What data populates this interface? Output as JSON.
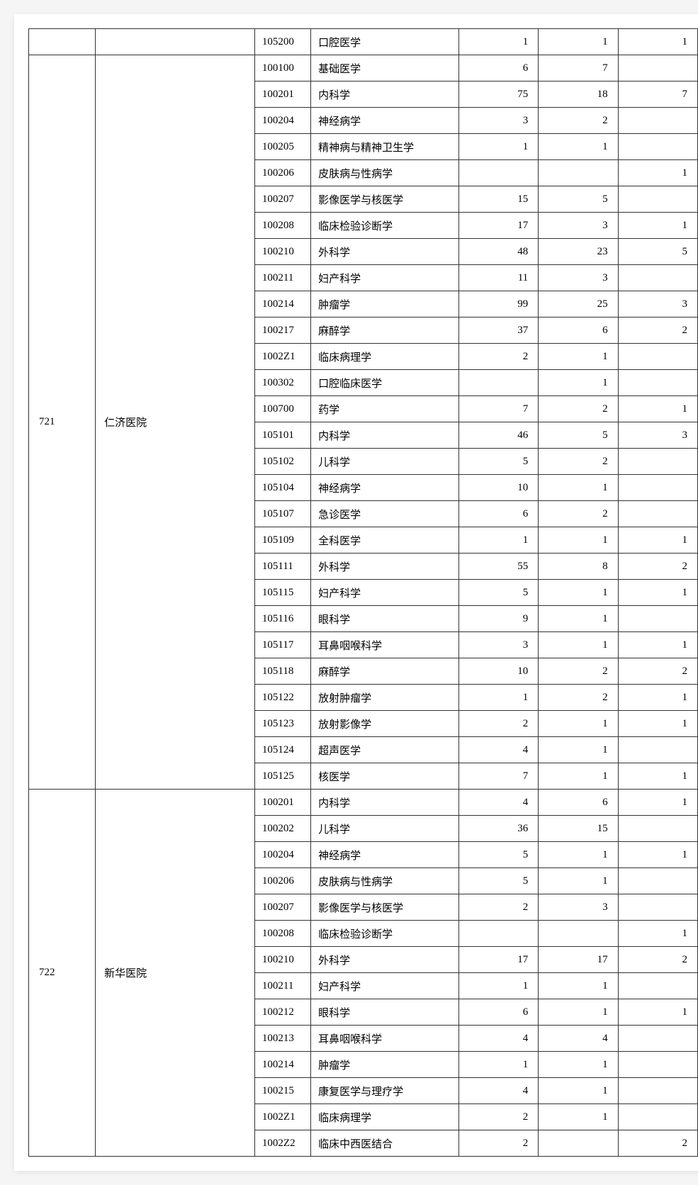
{
  "groups": [
    {
      "id": "",
      "name": "",
      "rows": [
        {
          "code": "105200",
          "subject": "口腔医学",
          "c1": "1",
          "c2": "1",
          "c3": "1"
        }
      ]
    },
    {
      "id": "721",
      "name": "仁济医院",
      "rows": [
        {
          "code": "100100",
          "subject": "基础医学",
          "c1": "6",
          "c2": "7",
          "c3": ""
        },
        {
          "code": "100201",
          "subject": "内科学",
          "c1": "75",
          "c2": "18",
          "c3": "7"
        },
        {
          "code": "100204",
          "subject": "神经病学",
          "c1": "3",
          "c2": "2",
          "c3": ""
        },
        {
          "code": "100205",
          "subject": "精神病与精神卫生学",
          "c1": "1",
          "c2": "1",
          "c3": ""
        },
        {
          "code": "100206",
          "subject": "皮肤病与性病学",
          "c1": "",
          "c2": "",
          "c3": "1"
        },
        {
          "code": "100207",
          "subject": "影像医学与核医学",
          "c1": "15",
          "c2": "5",
          "c3": ""
        },
        {
          "code": "100208",
          "subject": "临床检验诊断学",
          "c1": "17",
          "c2": "3",
          "c3": "1"
        },
        {
          "code": "100210",
          "subject": "外科学",
          "c1": "48",
          "c2": "23",
          "c3": "5"
        },
        {
          "code": "100211",
          "subject": "妇产科学",
          "c1": "11",
          "c2": "3",
          "c3": ""
        },
        {
          "code": "100214",
          "subject": "肿瘤学",
          "c1": "99",
          "c2": "25",
          "c3": "3"
        },
        {
          "code": "100217",
          "subject": "麻醉学",
          "c1": "37",
          "c2": "6",
          "c3": "2"
        },
        {
          "code": "1002Z1",
          "subject": "临床病理学",
          "c1": "2",
          "c2": "1",
          "c3": ""
        },
        {
          "code": "100302",
          "subject": "口腔临床医学",
          "c1": "",
          "c2": "1",
          "c3": ""
        },
        {
          "code": "100700",
          "subject": "药学",
          "c1": "7",
          "c2": "2",
          "c3": "1"
        },
        {
          "code": "105101",
          "subject": "内科学",
          "c1": "46",
          "c2": "5",
          "c3": "3"
        },
        {
          "code": "105102",
          "subject": "儿科学",
          "c1": "5",
          "c2": "2",
          "c3": ""
        },
        {
          "code": "105104",
          "subject": "神经病学",
          "c1": "10",
          "c2": "1",
          "c3": ""
        },
        {
          "code": "105107",
          "subject": "急诊医学",
          "c1": "6",
          "c2": "2",
          "c3": ""
        },
        {
          "code": "105109",
          "subject": "全科医学",
          "c1": "1",
          "c2": "1",
          "c3": "1"
        },
        {
          "code": "105111",
          "subject": "外科学",
          "c1": "55",
          "c2": "8",
          "c3": "2"
        },
        {
          "code": "105115",
          "subject": "妇产科学",
          "c1": "5",
          "c2": "1",
          "c3": "1"
        },
        {
          "code": "105116",
          "subject": "眼科学",
          "c1": "9",
          "c2": "1",
          "c3": ""
        },
        {
          "code": "105117",
          "subject": "耳鼻咽喉科学",
          "c1": "3",
          "c2": "1",
          "c3": "1"
        },
        {
          "code": "105118",
          "subject": "麻醉学",
          "c1": "10",
          "c2": "2",
          "c3": "2"
        },
        {
          "code": "105122",
          "subject": "放射肿瘤学",
          "c1": "1",
          "c2": "2",
          "c3": "1"
        },
        {
          "code": "105123",
          "subject": "放射影像学",
          "c1": "2",
          "c2": "1",
          "c3": "1"
        },
        {
          "code": "105124",
          "subject": "超声医学",
          "c1": "4",
          "c2": "1",
          "c3": ""
        },
        {
          "code": "105125",
          "subject": "核医学",
          "c1": "7",
          "c2": "1",
          "c3": "1"
        }
      ]
    },
    {
      "id": "722",
      "name": "新华医院",
      "rows": [
        {
          "code": "100201",
          "subject": "内科学",
          "c1": "4",
          "c2": "6",
          "c3": "1"
        },
        {
          "code": "100202",
          "subject": "儿科学",
          "c1": "36",
          "c2": "15",
          "c3": ""
        },
        {
          "code": "100204",
          "subject": "神经病学",
          "c1": "5",
          "c2": "1",
          "c3": "1"
        },
        {
          "code": "100206",
          "subject": "皮肤病与性病学",
          "c1": "5",
          "c2": "1",
          "c3": ""
        },
        {
          "code": "100207",
          "subject": "影像医学与核医学",
          "c1": "2",
          "c2": "3",
          "c3": ""
        },
        {
          "code": "100208",
          "subject": "临床检验诊断学",
          "c1": "",
          "c2": "",
          "c3": "1"
        },
        {
          "code": "100210",
          "subject": "外科学",
          "c1": "17",
          "c2": "17",
          "c3": "2"
        },
        {
          "code": "100211",
          "subject": "妇产科学",
          "c1": "1",
          "c2": "1",
          "c3": ""
        },
        {
          "code": "100212",
          "subject": "眼科学",
          "c1": "6",
          "c2": "1",
          "c3": "1"
        },
        {
          "code": "100213",
          "subject": "耳鼻咽喉科学",
          "c1": "4",
          "c2": "4",
          "c3": ""
        },
        {
          "code": "100214",
          "subject": "肿瘤学",
          "c1": "1",
          "c2": "1",
          "c3": ""
        },
        {
          "code": "100215",
          "subject": "康复医学与理疗学",
          "c1": "4",
          "c2": "1",
          "c3": ""
        },
        {
          "code": "1002Z1",
          "subject": "临床病理学",
          "c1": "2",
          "c2": "1",
          "c3": ""
        },
        {
          "code": "1002Z2",
          "subject": "临床中西医结合",
          "c1": "2",
          "c2": "",
          "c3": "2"
        }
      ]
    }
  ]
}
